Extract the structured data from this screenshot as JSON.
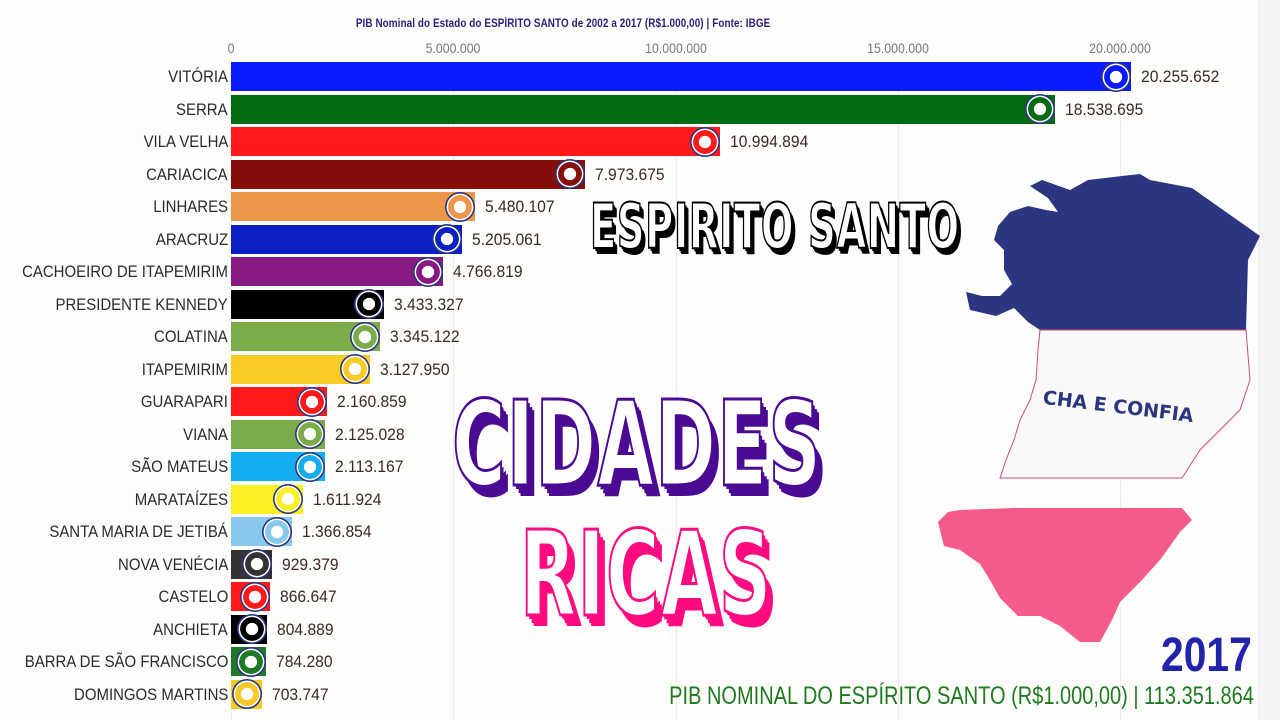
{
  "header": {
    "title": "PIB Nominal do Estado do ESPÍRITO SANTO de 2002 a 2017 (R$1.000,00) | Fonte: IBGE"
  },
  "axis": {
    "ticks": [
      "0",
      "5.000.000",
      "10.000.000",
      "15.000.000",
      "20.000.000"
    ]
  },
  "overlay": {
    "state_title": "ESPIRITO SANTO",
    "headline_line1": "CIDADES",
    "headline_line2": "RICAS",
    "map_flag_text": "CHA E CONFIA",
    "year": "2017",
    "total_label": "PIB NOMINAL DO ESPÍRITO SANTO (R$1.000,00) | 113.351.864"
  },
  "colors": {
    "flag_blue": "#2b3580",
    "flag_pink": "#f45a8a",
    "year": "#2222aa",
    "total": "#1f7a1f",
    "cidades_shadow": "#4b0a94",
    "ricas_shadow": "#ff0a80"
  },
  "rows": [
    {
      "label": "VITÓRIA",
      "value": "20.255.652",
      "color": "#0a1cff"
    },
    {
      "label": "SERRA",
      "value": "18.538.695",
      "color": "#056b12"
    },
    {
      "label": "VILA VELHA",
      "value": "10.994.894",
      "color": "#ff1a1a"
    },
    {
      "label": "CARIACICA",
      "value": "7.973.675",
      "color": "#850e0b"
    },
    {
      "label": "LINHARES",
      "value": "5.480.107",
      "color": "#ec9649"
    },
    {
      "label": "ARACRUZ",
      "value": "5.205.061",
      "color": "#0a1fc4"
    },
    {
      "label": "CACHOEIRO DE ITAPEMIRIM",
      "value": "4.766.819",
      "color": "#871a85"
    },
    {
      "label": "PRESIDENTE KENNEDY",
      "value": "3.433.327",
      "color": "#000000"
    },
    {
      "label": "COLATINA",
      "value": "3.345.122",
      "color": "#7cab4a"
    },
    {
      "label": "ITAPEMIRIM",
      "value": "3.127.950",
      "color": "#f8cc25"
    },
    {
      "label": "GUARAPARI",
      "value": "2.160.859",
      "color": "#ff1a1a"
    },
    {
      "label": "VIANA",
      "value": "2.125.028",
      "color": "#7cab4a"
    },
    {
      "label": "SÃO MATEUS",
      "value": "2.113.167",
      "color": "#14aef0"
    },
    {
      "label": "MARATAÍZES",
      "value": "1.611.924",
      "color": "#fbee22"
    },
    {
      "label": "SANTA MARIA DE JETIBÁ",
      "value": "1.366.854",
      "color": "#87c8ec"
    },
    {
      "label": "NOVA VENÉCIA",
      "value": "929.379",
      "color": "#333333"
    },
    {
      "label": "CASTELO",
      "value": "866.647",
      "color": "#ff1a1a"
    },
    {
      "label": "ANCHIETA",
      "value": "804.889",
      "color": "#000000"
    },
    {
      "label": "BARRA DE SÃO FRANCISCO",
      "value": "784.280",
      "color": "#1d7a26"
    },
    {
      "label": "DOMINGOS MARTINS",
      "value": "703.747",
      "color": "#f6c928"
    }
  ],
  "chart_data": {
    "type": "bar",
    "orientation": "horizontal",
    "title": "PIB Nominal do Estado do ESPÍRITO SANTO de 2002 a 2017 (R$1.000,00) | Fonte: IBGE",
    "xlabel": "",
    "ylabel": "",
    "xlim": [
      0,
      20255652
    ],
    "x_ticks": [
      0,
      5000000,
      10000000,
      15000000,
      20000000
    ],
    "grid": true,
    "legend": "none",
    "year": 2017,
    "total": 113351864,
    "categories": [
      "VITÓRIA",
      "SERRA",
      "VILA VELHA",
      "CARIACICA",
      "LINHARES",
      "ARACRUZ",
      "CACHOEIRO DE ITAPEMIRIM",
      "PRESIDENTE KENNEDY",
      "COLATINA",
      "ITAPEMIRIM",
      "GUARAPARI",
      "VIANA",
      "SÃO MATEUS",
      "MARATAÍZES",
      "SANTA MARIA DE JETIBÁ",
      "NOVA VENÉCIA",
      "CASTELO",
      "ANCHIETA",
      "BARRA DE SÃO FRANCISCO",
      "DOMINGOS MARTINS"
    ],
    "values": [
      20255652,
      18538695,
      10994894,
      7973675,
      5480107,
      5205061,
      4766819,
      3433327,
      3345122,
      3127950,
      2160859,
      2125028,
      2113167,
      1611924,
      1366854,
      929379,
      866647,
      804889,
      784280,
      703747
    ]
  }
}
